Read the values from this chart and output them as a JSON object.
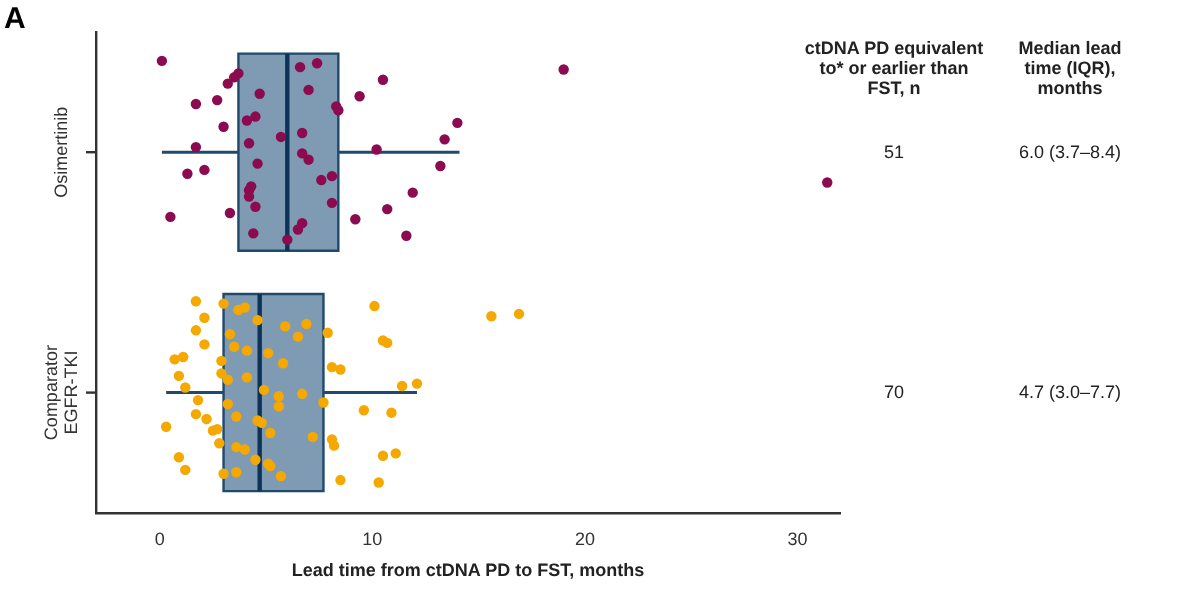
{
  "chart_data": {
    "type": "box",
    "orientation": "horizontal",
    "title": "A",
    "xlabel": "Lead time from ctDNA PD to FST, months",
    "categories": [
      "Osimertinib",
      "Comparator EGFR-TKI"
    ],
    "color": "#7f9bb3",
    "boxes": [
      {
        "low": 0.1,
        "q1": 3.7,
        "median": 6.0,
        "q3": 8.4,
        "high": 14.1
      },
      {
        "low": 0.3,
        "q1": 3.0,
        "median": 4.7,
        "q3": 7.7,
        "high": 12.1
      }
    ],
    "xlim": [
      -3,
      32
    ],
    "xticks": [
      0,
      10,
      20,
      30
    ],
    "grid": false,
    "legend": false,
    "marker": "circle",
    "series": [
      {
        "type": "scatter",
        "color": "#8b0a50",
        "x": [
          "Osimertinib",
          "Osimertinib",
          "Osimertinib",
          "Osimertinib",
          "Osimertinib",
          "Osimertinib",
          "Osimertinib",
          "Osimertinib",
          "Osimertinib",
          "Osimertinib",
          "Osimertinib",
          "Osimertinib",
          "Osimertinib",
          "Osimertinib",
          "Osimertinib",
          "Osimertinib",
          "Osimertinib",
          "Osimertinib",
          "Osimertinib",
          "Osimertinib",
          "Osimertinib",
          "Osimertinib",
          "Osimertinib",
          "Osimertinib",
          "Osimertinib",
          "Osimertinib",
          "Osimertinib",
          "Osimertinib",
          "Osimertinib",
          "Osimertinib",
          "Osimertinib",
          "Osimertinib",
          "Osimertinib",
          "Osimertinib",
          "Osimertinib",
          "Osimertinib",
          "Osimertinib",
          "Osimertinib",
          "Osimertinib",
          "Osimertinib",
          "Osimertinib",
          "Osimertinib",
          "Osimertinib",
          "Osimertinib",
          "Osimertinib",
          "Osimertinib",
          "Osimertinib",
          "Osimertinib",
          "Osimertinib"
        ],
        "values": [
          0.1,
          1.3,
          1.7,
          0.5,
          1.7,
          3.5,
          4.2,
          4.1,
          4.4,
          4.6,
          4.7,
          4.5,
          5.7,
          6.6,
          7.6,
          8.4,
          6.7,
          6.7,
          3.2,
          4.2,
          3.0,
          6.0,
          2.1,
          2.7,
          3.3,
          4.2,
          3.7,
          4.3,
          4.5,
          6.5,
          7.0,
          7.0,
          8.1,
          6.7,
          7.4,
          8.1,
          8.3,
          9.2,
          10.2,
          10.5,
          11.9,
          14.0,
          11.6,
          13.2,
          9.4,
          10.7,
          13.4,
          19.0,
          31.4
        ]
      },
      {
        "type": "scatter",
        "color": "#f5a800",
        "x": [
          "Comparator EGFR-TKI",
          "Comparator EGFR-TKI",
          "Comparator EGFR-TKI",
          "Comparator EGFR-TKI",
          "Comparator EGFR-TKI",
          "Comparator EGFR-TKI",
          "Comparator EGFR-TKI",
          "Comparator EGFR-TKI",
          "Comparator EGFR-TKI",
          "Comparator EGFR-TKI",
          "Comparator EGFR-TKI",
          "Comparator EGFR-TKI",
          "Comparator EGFR-TKI",
          "Comparator EGFR-TKI",
          "Comparator EGFR-TKI",
          "Comparator EGFR-TKI",
          "Comparator EGFR-TKI",
          "Comparator EGFR-TKI",
          "Comparator EGFR-TKI",
          "Comparator EGFR-TKI",
          "Comparator EGFR-TKI",
          "Comparator EGFR-TKI",
          "Comparator EGFR-TKI",
          "Comparator EGFR-TKI",
          "Comparator EGFR-TKI",
          "Comparator EGFR-TKI",
          "Comparator EGFR-TKI",
          "Comparator EGFR-TKI",
          "Comparator EGFR-TKI",
          "Comparator EGFR-TKI",
          "Comparator EGFR-TKI",
          "Comparator EGFR-TKI",
          "Comparator EGFR-TKI",
          "Comparator EGFR-TKI",
          "Comparator EGFR-TKI",
          "Comparator EGFR-TKI",
          "Comparator EGFR-TKI",
          "Comparator EGFR-TKI",
          "Comparator EGFR-TKI",
          "Comparator EGFR-TKI",
          "Comparator EGFR-TKI",
          "Comparator EGFR-TKI",
          "Comparator EGFR-TKI",
          "Comparator EGFR-TKI",
          "Comparator EGFR-TKI",
          "Comparator EGFR-TKI",
          "Comparator EGFR-TKI",
          "Comparator EGFR-TKI",
          "Comparator EGFR-TKI",
          "Comparator EGFR-TKI",
          "Comparator EGFR-TKI",
          "Comparator EGFR-TKI",
          "Comparator EGFR-TKI",
          "Comparator EGFR-TKI",
          "Comparator EGFR-TKI",
          "Comparator EGFR-TKI",
          "Comparator EGFR-TKI",
          "Comparator EGFR-TKI",
          "Comparator EGFR-TKI",
          "Comparator EGFR-TKI",
          "Comparator EGFR-TKI",
          "Comparator EGFR-TKI",
          "Comparator EGFR-TKI",
          "Comparator EGFR-TKI",
          "Comparator EGFR-TKI",
          "Comparator EGFR-TKI",
          "Comparator EGFR-TKI",
          "Comparator EGFR-TKI",
          "Comparator EGFR-TKI",
          "Comparator EGFR-TKI"
        ],
        "values": [
          1.7,
          1.7,
          2.1,
          0.9,
          1.2,
          2.1,
          2.5,
          2.9,
          3.0,
          3.2,
          3.3,
          3.6,
          4.1,
          4.0,
          4.6,
          4.1,
          5.1,
          6.7,
          6.9,
          7.2,
          8.1,
          8.5,
          9.6,
          10.5,
          11.1,
          12.1,
          16.9,
          0.3,
          1.1,
          1.2,
          1.8,
          1.7,
          2.8,
          2.9,
          3.0,
          3.6,
          3.5,
          4.5,
          4.9,
          4.6,
          5.2,
          5.8,
          5.7,
          5.6,
          6.5,
          4.0,
          3.2,
          3.7,
          4.8,
          5.1,
          5.2,
          5.6,
          5.9,
          8.1,
          8.5,
          10.3,
          10.9,
          10.7,
          10.5,
          11.4,
          15.6,
          2.7,
          0.7,
          3.6,
          7.7,
          7.9,
          8.2,
          0.9,
          10.1,
          2.2
        ]
      }
    ],
    "annotations": [
      "ctDNA PD equivalent to* or earlier than FST, n",
      "Median lead time (IQR), months",
      "51",
      "6.0 (3.7–8.4)",
      "70",
      "4.7 (3.0–7.7)"
    ]
  }
}
